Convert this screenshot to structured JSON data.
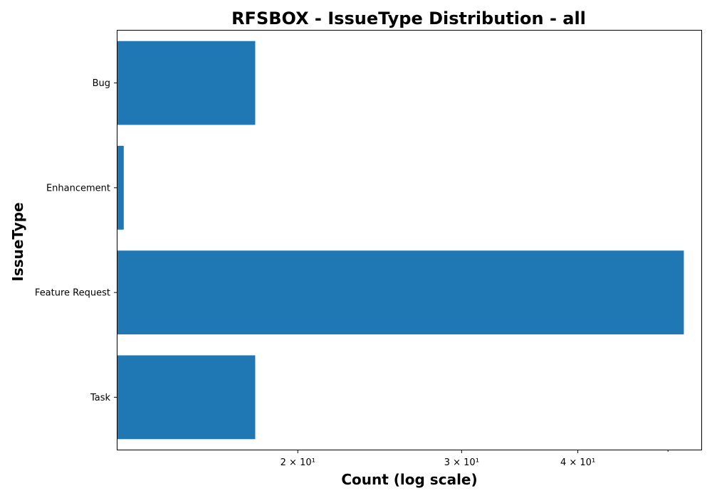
{
  "chart_data": {
    "type": "bar",
    "orientation": "horizontal",
    "title": "RFSBOX - IssueType Distribution - all",
    "xlabel": "Count (log scale)",
    "ylabel": "IssueType",
    "x_scale": "log",
    "xlim": [
      12.8,
      54.3
    ],
    "categories": [
      "Bug",
      "Enhancement",
      "Feature Request",
      "Task"
    ],
    "values": [
      18,
      13,
      52,
      18
    ],
    "color": "#1f77b4",
    "x_major_ticks": [
      {
        "value": 20,
        "label": "2 × 10¹"
      },
      {
        "value": 30,
        "label": "3 × 10¹"
      },
      {
        "value": 40,
        "label": "4 × 10¹"
      }
    ],
    "x_minor_ticks": [
      50
    ],
    "grid": false,
    "legend": "none"
  }
}
